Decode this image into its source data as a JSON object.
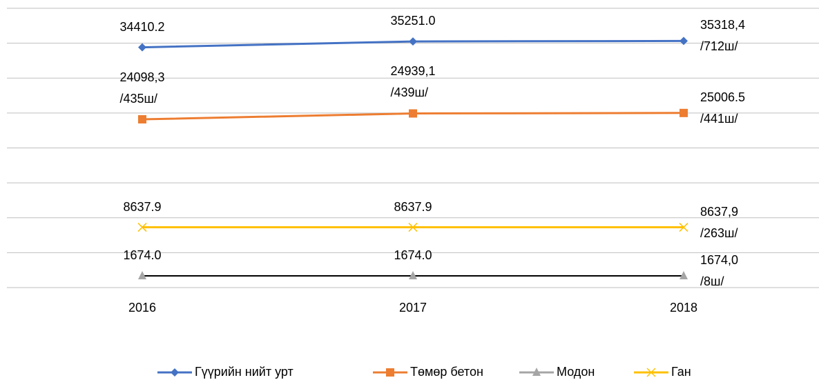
{
  "chart_data": {
    "type": "line",
    "categories": [
      "2016",
      "2017",
      "2018"
    ],
    "series": [
      {
        "name": "Гүүрийн нийт урт",
        "color": "#4472c4",
        "marker": "diamond",
        "values": [
          34410.2,
          35251.0,
          35318.4
        ],
        "value_labels": [
          "34410.2",
          "35251.0",
          "35318,4\n/712ш/"
        ]
      },
      {
        "name": "Төмөр бетон",
        "color": "#ed7d31",
        "marker": "square",
        "values": [
          24098.3,
          24939.1,
          25006.5
        ],
        "value_labels": [
          "24098,3\n/435ш/",
          "24939,1\n/439ш/",
          "25006.5\n/441ш/"
        ]
      },
      {
        "name": "Модон",
        "color": "#a5a5a5",
        "line_color": "#000000",
        "marker": "triangle",
        "values": [
          1674.0,
          1674.0,
          1674.0
        ],
        "value_labels": [
          "1674.0",
          "1674.0",
          "1674,0\n/8ш/"
        ]
      },
      {
        "name": "Ган",
        "color": "#ffc000",
        "marker": "x",
        "values": [
          8637.9,
          8637.9,
          8637.9
        ],
        "value_labels": [
          "8637.9",
          "8637.9",
          "8637,9\n/263ш/"
        ]
      }
    ],
    "ylim": [
      0,
      40000
    ],
    "yticks": [
      0,
      5000,
      10000,
      15000,
      20000,
      25000,
      30000,
      35000,
      40000
    ],
    "grid": true,
    "legend": "bottom"
  }
}
